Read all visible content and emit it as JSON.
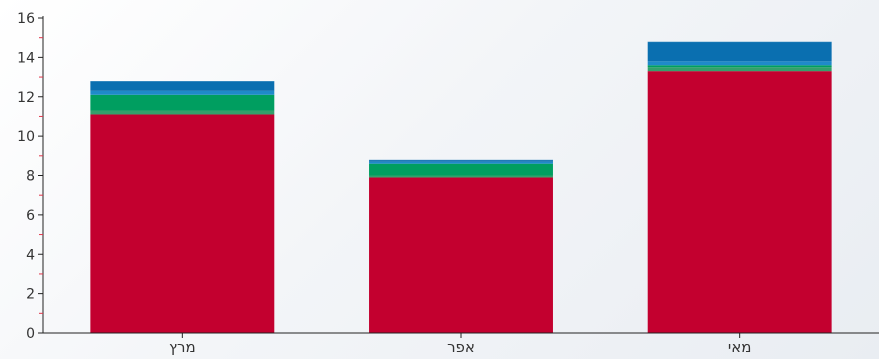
{
  "chart_data": {
    "type": "bar",
    "stacked": true,
    "categories": [
      "מרץ",
      "אפר",
      "מאי"
    ],
    "series": [
      {
        "color": "#c3002f",
        "values": [
          11.1,
          7.9,
          13.3
        ]
      },
      {
        "color": "#33a06b",
        "values": [
          0.2,
          0.1,
          0.2
        ]
      },
      {
        "color": "#009e60",
        "values": [
          0.8,
          0.6,
          0.1
        ]
      },
      {
        "color": "#1f8ac9",
        "values": [
          0.2,
          0.1,
          0.2
        ]
      },
      {
        "color": "#0a6fb0",
        "values": [
          0.5,
          0.1,
          1.0
        ]
      }
    ],
    "ylim": [
      0,
      16
    ],
    "yticks": [
      0,
      2,
      4,
      6,
      8,
      10,
      12,
      14,
      16
    ],
    "grid": false,
    "xlabel": "",
    "ylabel": "",
    "title": ""
  }
}
